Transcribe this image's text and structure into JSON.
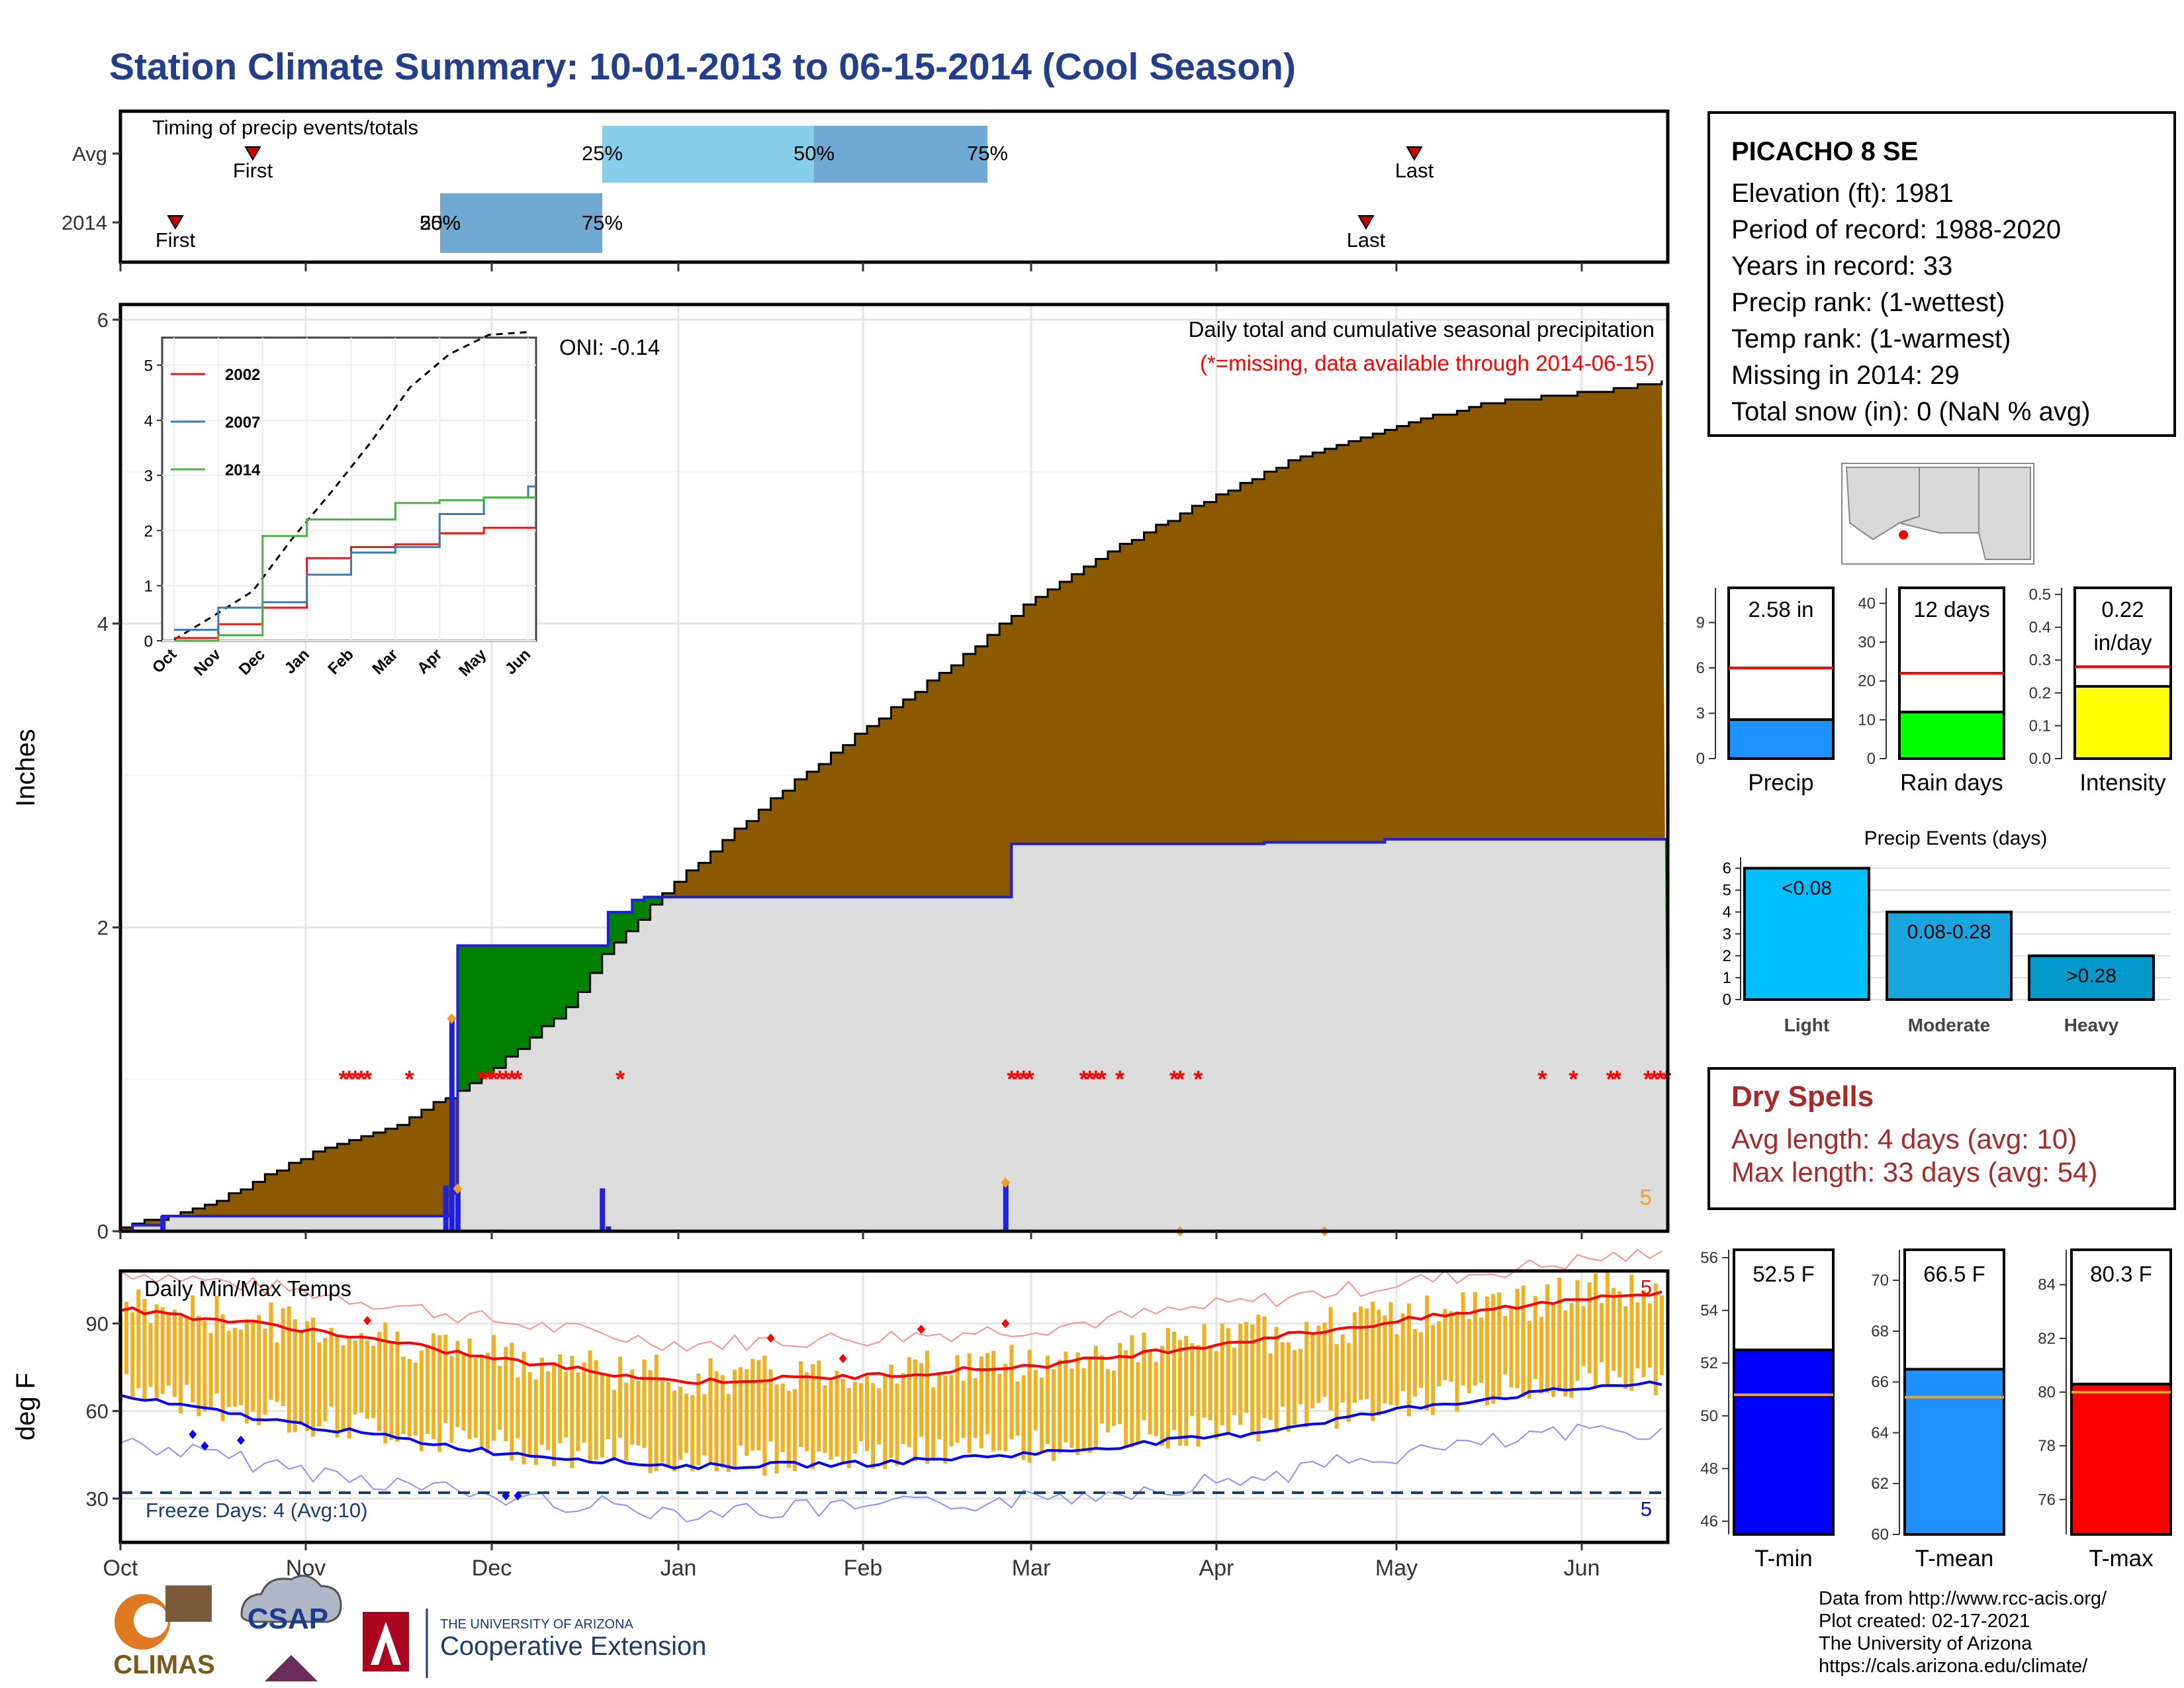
{
  "title": "Station Climate Summary: 10-01-2013 to 06-15-2014 (Cool Season)",
  "timing": {
    "heading": "Timing of precip events/totals",
    "row_labels": [
      "Avg",
      "2014"
    ],
    "avg": {
      "first": "First",
      "last": "Last",
      "p25": "25%",
      "p50": "50%",
      "p75": "75%"
    },
    "y2014": {
      "first": "First",
      "last": "Last",
      "p25": "25%",
      "p50": "50%",
      "p75": "75%"
    }
  },
  "station": {
    "name": "PICACHO 8 SE",
    "lines": [
      "Elevation (ft): 1981",
      "Period of record: 1988-2020",
      "Years in record: 33",
      "Precip rank:  (1-wettest)",
      "Temp rank:  (1-warmest)",
      "Missing in 2014: 29",
      "Total snow (in): 0 (NaN % avg)"
    ]
  },
  "main_chart": {
    "ylabel": "Inches",
    "caption": "Daily total and cumulative seasonal precipitation",
    "missing_note": "(*=missing, data available through 2014-06-15)",
    "oni": "ONI: -0.14",
    "corner_count": "5",
    "month_labels": [
      "Oct",
      "Nov",
      "Dec",
      "Jan",
      "Feb",
      "Mar",
      "Apr",
      "May",
      "Jun"
    ],
    "y_ticks": [
      "0",
      "2",
      "4",
      "6"
    ]
  },
  "temp_chart": {
    "ylabel": "deg F",
    "heading": "Daily Min/Max Temps",
    "freeze": "Freeze Days: 4 (Avg:10)",
    "top_count": "5",
    "bottom_count": "5",
    "y_ticks": [
      "30",
      "60",
      "90"
    ]
  },
  "summary_bars": {
    "precip": {
      "label": "Precip",
      "value_text": "2.58 in",
      "ticks": [
        "0",
        "3",
        "6",
        "9"
      ]
    },
    "raindays": {
      "label": "Rain days",
      "value_text": "12 days",
      "ticks": [
        "0",
        "10",
        "20",
        "30",
        "40"
      ]
    },
    "intensity": {
      "label": "Intensity",
      "value_text": "0.22",
      "value_unit": "in/day",
      "ticks": [
        "0.0",
        "0.1",
        "0.2",
        "0.3",
        "0.4",
        "0.5"
      ]
    }
  },
  "events": {
    "title": "Precip Events (days)",
    "ticks": [
      "0",
      "1",
      "2",
      "3",
      "4",
      "5",
      "6"
    ],
    "categories": [
      "Light",
      "Moderate",
      "Heavy"
    ],
    "bar_labels": [
      "<0.08",
      "0.08-0.28",
      ">0.28"
    ]
  },
  "dry_spells": {
    "title": "Dry Spells",
    "avg": "Avg length: 4 days (avg: 10)",
    "max": "Max length: 33 days (avg: 54)"
  },
  "temp_bars": {
    "tmin": {
      "label": "T-min",
      "value_text": "52.5 F",
      "ticks": [
        "46",
        "48",
        "50",
        "52",
        "54",
        "56"
      ]
    },
    "tmean": {
      "label": "T-mean",
      "value_text": "66.5 F",
      "ticks": [
        "60",
        "62",
        "64",
        "66",
        "68",
        "70"
      ]
    },
    "tmax": {
      "label": "T-max",
      "value_text": "80.3 F",
      "ticks": [
        "76",
        "78",
        "80",
        "82",
        "84"
      ]
    }
  },
  "logos": {
    "climas": "CLIMAS",
    "csap": "CSAP",
    "ua_small": "THE UNIVERSITY OF ARIZONA",
    "ua_big": "Cooperative Extension"
  },
  "credits": [
    "Data from http://www.rcc-acis.org/",
    "Plot created: 02-17-2021",
    "The University of Arizona",
    "https://cals.arizona.edu/climate/"
  ],
  "chart_data": [
    {
      "type": "area",
      "title": "Daily total and cumulative seasonal precipitation",
      "ylabel": "Inches",
      "ylim": [
        0,
        6.1
      ],
      "x": [
        "10-01",
        "10-15",
        "11-01",
        "11-15",
        "11-24",
        "11-25",
        "12-01",
        "12-15",
        "12-20",
        "01-01",
        "01-15",
        "02-01",
        "02-15",
        "03-01",
        "03-15",
        "04-01",
        "04-15",
        "05-01",
        "05-15",
        "06-01",
        "06-15"
      ],
      "series": [
        {
          "name": "avg_cumulative",
          "values": [
            0.02,
            0.17,
            0.5,
            0.69,
            0.88,
            0.9,
            1.05,
            1.5,
            1.82,
            2.3,
            2.78,
            3.3,
            3.7,
            4.15,
            4.5,
            4.85,
            5.1,
            5.3,
            5.45,
            5.52,
            5.6
          ]
        },
        {
          "name": "2014_cumulative",
          "values": [
            0.1,
            0.1,
            0.1,
            0.1,
            0.12,
            1.88,
            1.88,
            1.88,
            2.18,
            2.2,
            2.2,
            2.2,
            2.2,
            2.55,
            2.55,
            2.56,
            2.56,
            2.58,
            2.58,
            2.58,
            2.58
          ]
        }
      ]
    },
    {
      "type": "line",
      "title": "",
      "x": [
        "Oct",
        "Nov",
        "Dec",
        "Jan",
        "Feb",
        "Mar",
        "Apr",
        "May",
        "Jun"
      ],
      "ylim": [
        0,
        5.5
      ],
      "series": [
        {
          "name": "2002",
          "values": [
            0.05,
            0.3,
            0.6,
            1.5,
            1.7,
            1.75,
            1.95,
            2.05,
            2.05
          ]
        },
        {
          "name": "2007",
          "values": [
            0.2,
            0.6,
            0.7,
            1.2,
            1.6,
            1.7,
            2.3,
            2.6,
            2.8
          ]
        },
        {
          "name": "2014",
          "values": [
            0.0,
            0.1,
            1.9,
            2.2,
            2.2,
            2.5,
            2.55,
            2.6,
            2.6
          ]
        }
      ]
    },
    {
      "type": "line",
      "title": "Daily Min/Max Temps",
      "ylabel": "deg F",
      "x": [
        "Oct",
        "Nov",
        "Dec",
        "Jan",
        "Feb",
        "Mar",
        "Apr",
        "May",
        "Jun"
      ],
      "ylim": [
        15,
        108
      ],
      "series": [
        {
          "name": "avg_max",
          "values": [
            95,
            88,
            78,
            70,
            72,
            76,
            84,
            92,
            100
          ]
        },
        {
          "name": "avg_min",
          "values": [
            65,
            55,
            46,
            41,
            42,
            46,
            52,
            62,
            69
          ]
        }
      ]
    },
    {
      "type": "bar",
      "title": "Precip Events (days)",
      "categories": [
        "Light",
        "Moderate",
        "Heavy"
      ],
      "values": [
        6,
        4,
        2
      ],
      "ylim": [
        0,
        6.5
      ]
    },
    {
      "type": "bar",
      "categories": [
        "Precip",
        "Rain days",
        "Intensity"
      ],
      "values": [
        2.58,
        12,
        0.22
      ],
      "averages": [
        6,
        22,
        0.28
      ]
    },
    {
      "type": "bar",
      "categories": [
        "T-min",
        "T-mean",
        "T-max"
      ],
      "values": [
        52.5,
        66.5,
        80.3
      ],
      "averages": [
        50.8,
        65.4,
        80.0
      ]
    }
  ]
}
